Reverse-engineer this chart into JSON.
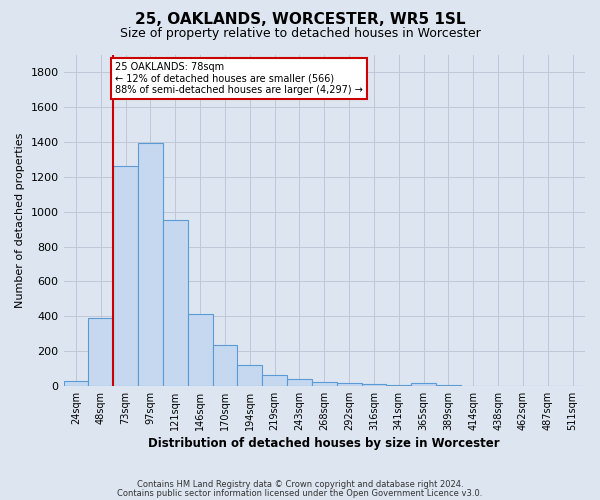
{
  "title": "25, OAKLANDS, WORCESTER, WR5 1SL",
  "subtitle": "Size of property relative to detached houses in Worcester",
  "xlabel": "Distribution of detached houses by size in Worcester",
  "ylabel": "Number of detached properties",
  "footnote1": "Contains HM Land Registry data © Crown copyright and database right 2024.",
  "footnote2": "Contains public sector information licensed under the Open Government Licence v3.0.",
  "bar_labels": [
    "24sqm",
    "48sqm",
    "73sqm",
    "97sqm",
    "121sqm",
    "146sqm",
    "170sqm",
    "194sqm",
    "219sqm",
    "243sqm",
    "268sqm",
    "292sqm",
    "316sqm",
    "341sqm",
    "365sqm",
    "389sqm",
    "414sqm",
    "438sqm",
    "462sqm",
    "487sqm",
    "511sqm"
  ],
  "bar_values": [
    25,
    390,
    1265,
    1395,
    950,
    410,
    235,
    120,
    65,
    40,
    22,
    15,
    8,
    3,
    15,
    2,
    0,
    0,
    0,
    0,
    0
  ],
  "bar_color": "#c5d8f0",
  "bar_edge_color": "#5b9bd5",
  "grid_color": "#c0c8d8",
  "bg_color": "#dde6f0",
  "vline_color": "#cc0000",
  "vline_bar_index": 2,
  "annotation_line1": "25 OAKLANDS: 78sqm",
  "annotation_line2": "← 12% of detached houses are smaller (566)",
  "annotation_line3": "88% of semi-detached houses are larger (4,297) →",
  "ylim": [
    0,
    1900
  ],
  "yticks": [
    0,
    200,
    400,
    600,
    800,
    1000,
    1200,
    1400,
    1600,
    1800
  ],
  "bar_width": 1.0
}
